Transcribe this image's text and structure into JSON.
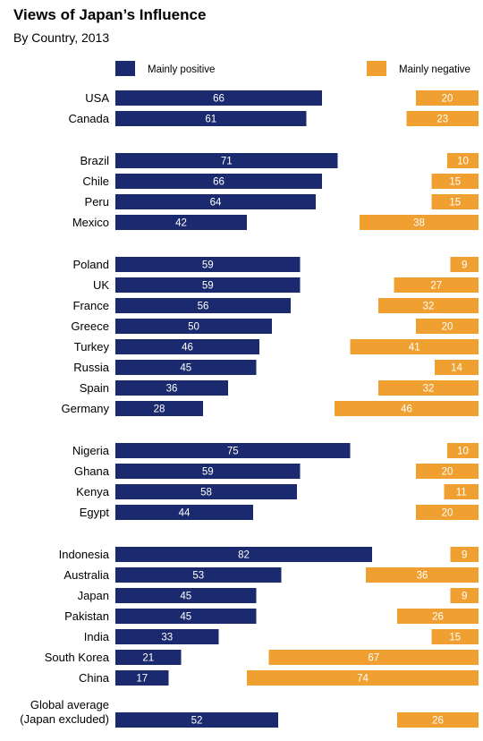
{
  "chart_data": {
    "type": "bar",
    "orientation": "horizontal",
    "title": "Views of Japan’s Influence",
    "subtitle": "By Country, 2013",
    "colors": {
      "positive": "#1b2a6e",
      "negative": "#f0a030"
    },
    "series": [
      {
        "name": "Mainly positive",
        "key": "positive"
      },
      {
        "name": "Mainly negative",
        "key": "negative"
      }
    ],
    "groups": [
      {
        "rows": [
          {
            "label": "USA",
            "positive": 66,
            "negative": 20
          },
          {
            "label": "Canada",
            "positive": 61,
            "negative": 23
          }
        ]
      },
      {
        "rows": [
          {
            "label": "Brazil",
            "positive": 71,
            "negative": 10
          },
          {
            "label": "Chile",
            "positive": 66,
            "negative": 15
          },
          {
            "label": "Peru",
            "positive": 64,
            "negative": 15
          },
          {
            "label": "Mexico",
            "positive": 42,
            "negative": 38
          }
        ]
      },
      {
        "rows": [
          {
            "label": "Poland",
            "positive": 59,
            "negative": 9
          },
          {
            "label": "UK",
            "positive": 59,
            "negative": 27
          },
          {
            "label": "France",
            "positive": 56,
            "negative": 32
          },
          {
            "label": "Greece",
            "positive": 50,
            "negative": 20
          },
          {
            "label": "Turkey",
            "positive": 46,
            "negative": 41
          },
          {
            "label": "Russia",
            "positive": 45,
            "negative": 14
          },
          {
            "label": "Spain",
            "positive": 36,
            "negative": 32
          },
          {
            "label": "Germany",
            "positive": 28,
            "negative": 46
          }
        ]
      },
      {
        "rows": [
          {
            "label": "Nigeria",
            "positive": 75,
            "negative": 10
          },
          {
            "label": "Ghana",
            "positive": 59,
            "negative": 20
          },
          {
            "label": "Kenya",
            "positive": 58,
            "negative": 11
          },
          {
            "label": "Egypt",
            "positive": 44,
            "negative": 20
          }
        ]
      },
      {
        "rows": [
          {
            "label": "Indonesia",
            "positive": 82,
            "negative": 9
          },
          {
            "label": "Australia",
            "positive": 53,
            "negative": 36
          },
          {
            "label": "Japan",
            "positive": 45,
            "negative": 9
          },
          {
            "label": "Pakistan",
            "positive": 45,
            "negative": 26
          },
          {
            "label": "India",
            "positive": 33,
            "negative": 15
          },
          {
            "label": "South Korea",
            "positive": 21,
            "negative": 67
          },
          {
            "label": "China",
            "positive": 17,
            "negative": 74
          }
        ]
      },
      {
        "rows": [
          {
            "label": [
              "Global average",
              "(Japan excluded)"
            ],
            "positive": 52,
            "negative": 26
          }
        ]
      }
    ]
  }
}
